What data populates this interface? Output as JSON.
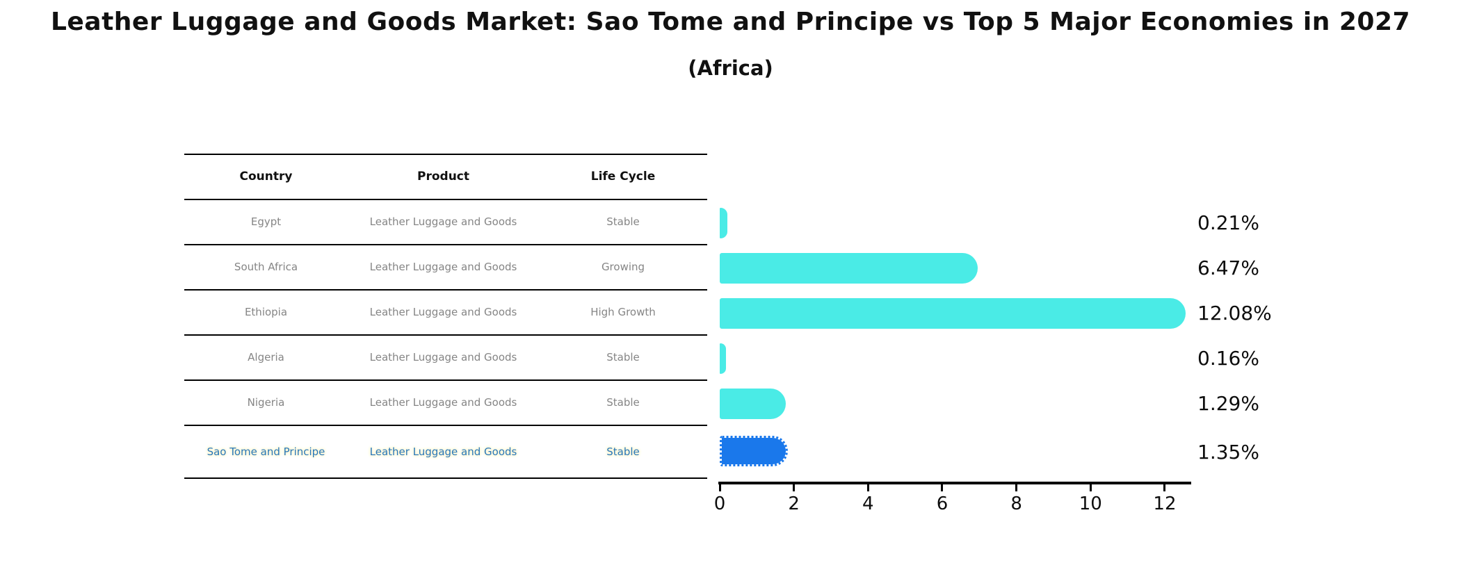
{
  "title": "Leather Luggage and Goods Market: Sao Tome and Principe vs Top 5 Major Economies in 2027",
  "subtitle": "(Africa)",
  "table": {
    "headers": [
      "Country",
      "Product",
      "Life Cycle"
    ],
    "rows": [
      {
        "country": "Egypt",
        "product": "Leather Luggage and Goods",
        "life_cycle": "Stable",
        "value_label": "0.21%",
        "highlighted": false
      },
      {
        "country": "South Africa",
        "product": "Leather Luggage and Goods",
        "life_cycle": "Growing",
        "value_label": "6.47%",
        "highlighted": false
      },
      {
        "country": "Ethiopia",
        "product": "Leather Luggage and Goods",
        "life_cycle": "High Growth",
        "value_label": "12.08%",
        "highlighted": false
      },
      {
        "country": "Algeria",
        "product": "Leather Luggage and Goods",
        "life_cycle": "Stable",
        "value_label": "0.16%",
        "highlighted": false
      },
      {
        "country": "Nigeria",
        "product": "Leather Luggage and Goods",
        "life_cycle": "Stable",
        "value_label": "1.29%",
        "highlighted": false
      },
      {
        "country": "Sao Tome and Principe",
        "product": "Leather Luggage and Goods",
        "life_cycle": "Stable",
        "value_label": "1.35%",
        "highlighted": true
      }
    ]
  },
  "chart_data": {
    "type": "bar",
    "orientation": "horizontal",
    "title": "Leather Luggage and Goods Market: Sao Tome and Principe vs Top 5 Major Economies in 2027",
    "subtitle": "(Africa)",
    "categories": [
      "Egypt",
      "South Africa",
      "Ethiopia",
      "Algeria",
      "Nigeria",
      "Sao Tome and Principe"
    ],
    "values": [
      0.21,
      6.47,
      12.08,
      0.16,
      1.29,
      1.35
    ],
    "value_labels": [
      "0.21%",
      "6.47%",
      "12.08%",
      "0.16%",
      "1.29%",
      "1.35%"
    ],
    "x_ticks": [
      0,
      2,
      4,
      6,
      8,
      10,
      12
    ],
    "xlim": [
      0,
      12.7
    ],
    "grid": false,
    "legend": "none",
    "bar_color": "#4aebe6",
    "highlight_bar_color": "#1a78eb",
    "highlight_index": 5
  },
  "colors": {
    "background": "#ffffff",
    "bar": "#4aebe6",
    "highlight_bar": "#1a78eb",
    "highlight_text": "#2878b8",
    "row_text": "#858585",
    "header_text": "#111111",
    "axis": "#000000",
    "highlight_halo": "#fdf6d5"
  }
}
